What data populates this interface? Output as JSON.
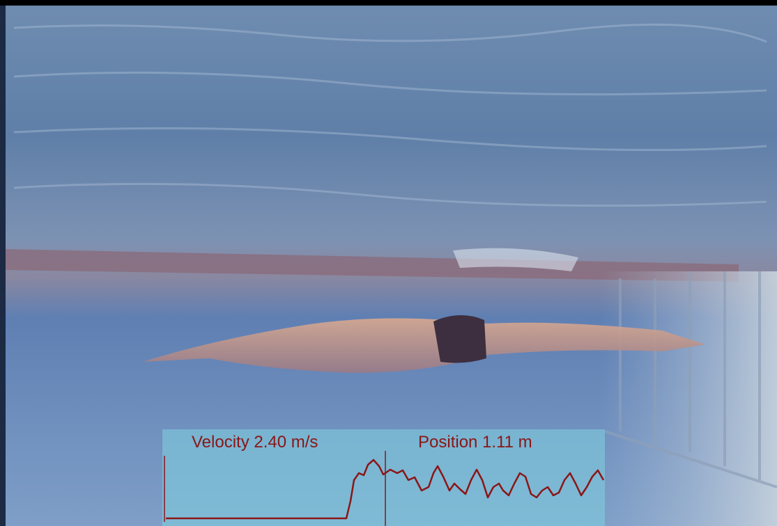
{
  "overlay": {
    "velocity": "Velocity 2.40 m/s",
    "position": "Position 1.11 m"
  }
}
